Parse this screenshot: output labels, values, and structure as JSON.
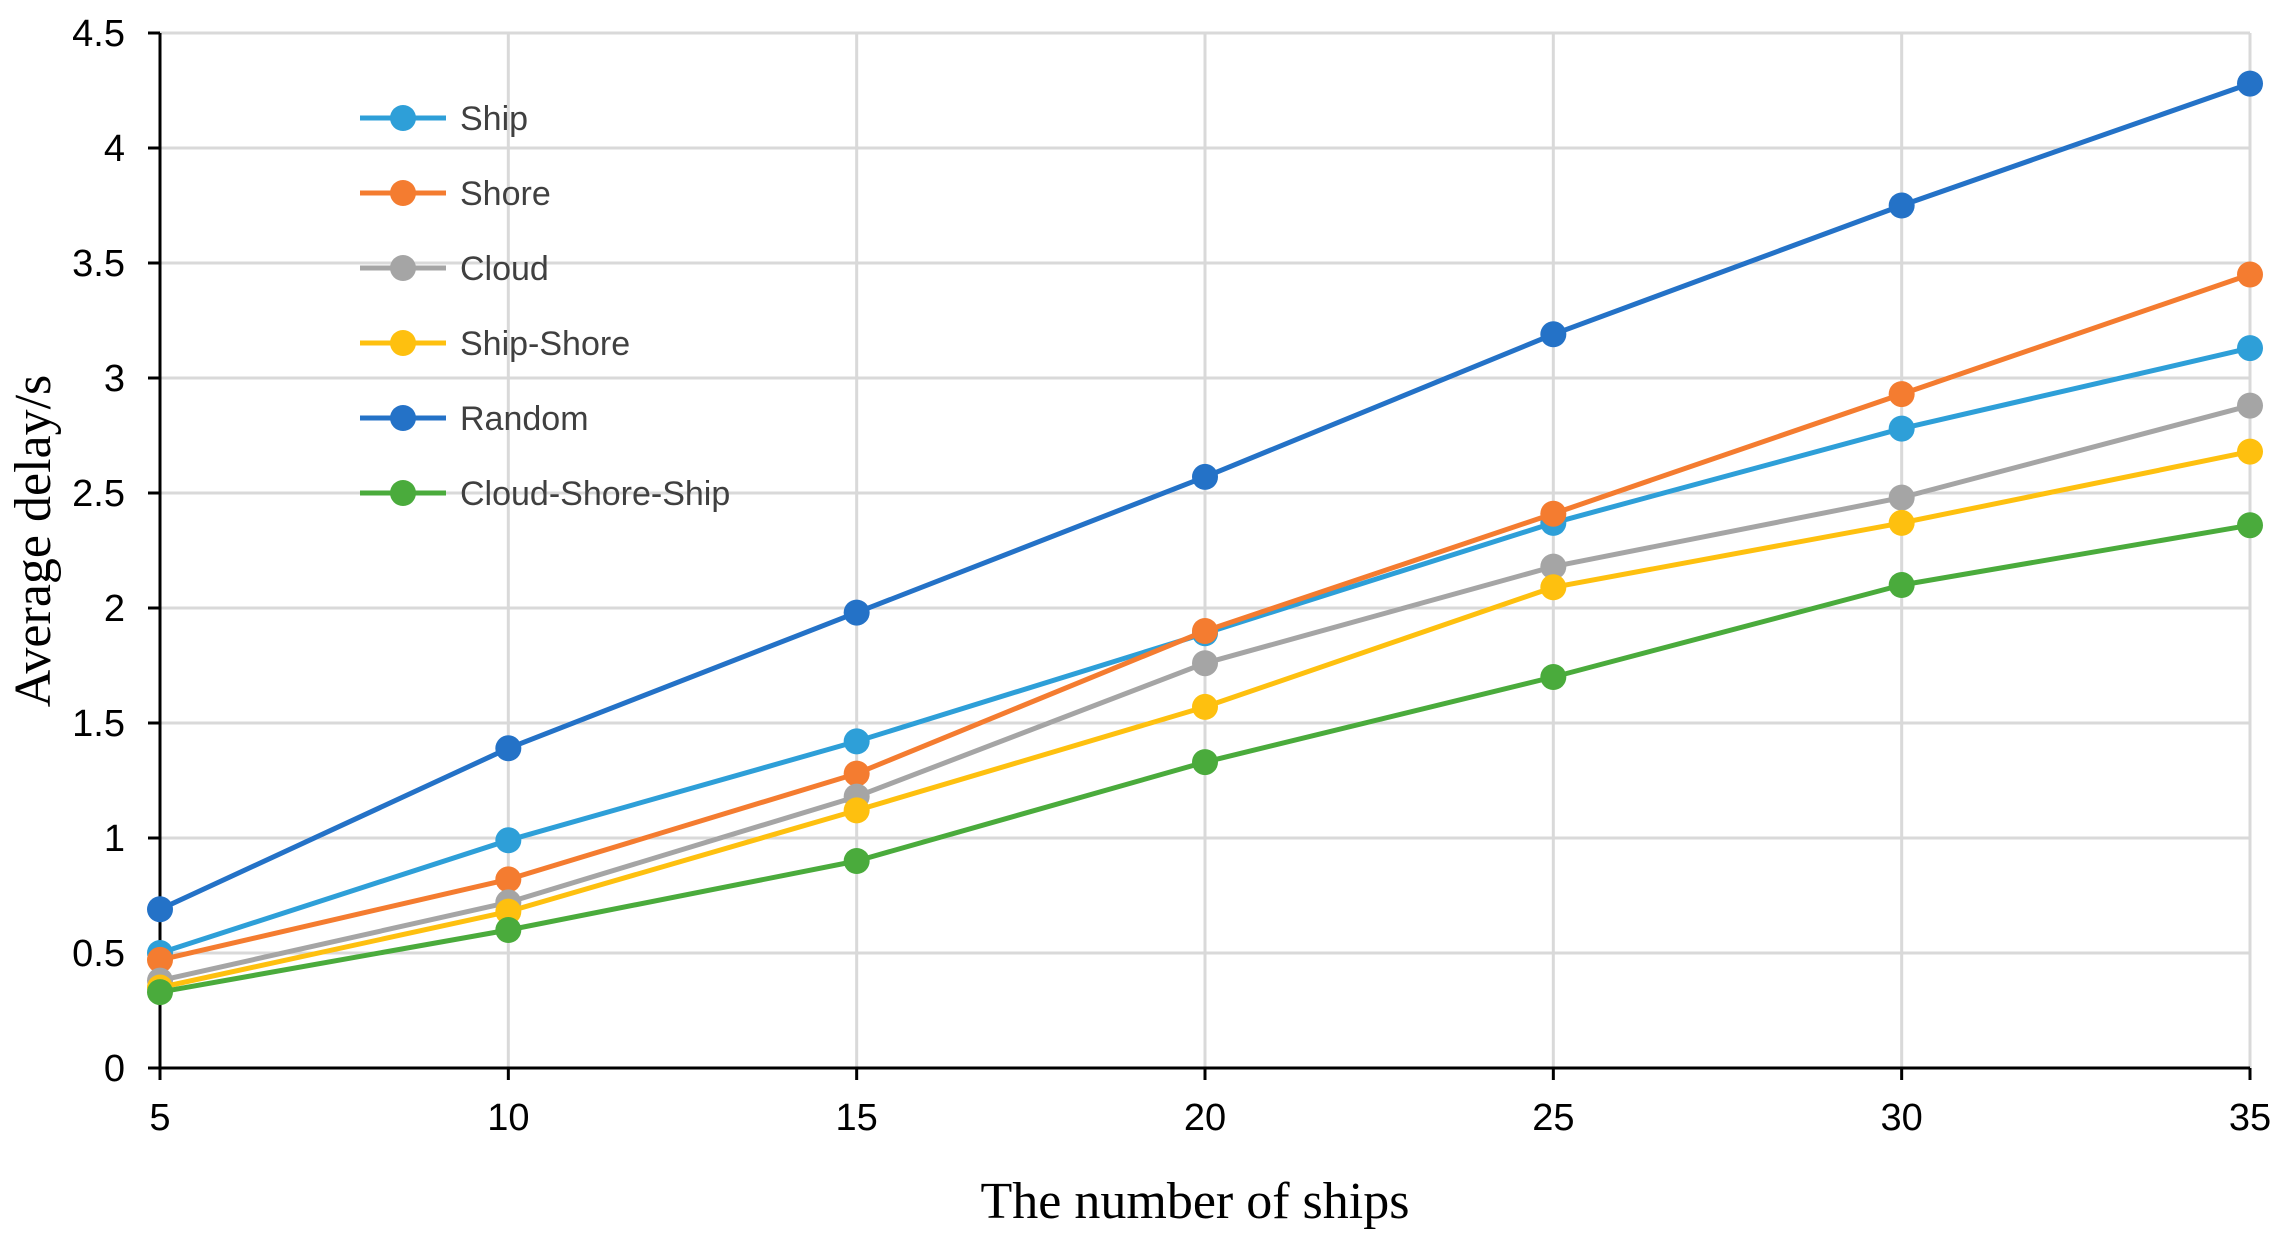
{
  "chart_data": {
    "type": "line",
    "title": "",
    "xlabel": "The number of ships",
    "ylabel": "Average delay/s",
    "x": [
      5,
      10,
      15,
      20,
      25,
      30,
      35
    ],
    "xlim": [
      5,
      35
    ],
    "ylim": [
      0,
      4.5
    ],
    "x_ticks": [
      "5",
      "10",
      "15",
      "20",
      "25",
      "30",
      "35"
    ],
    "y_ticks": [
      "0",
      "0.5",
      "1",
      "1.5",
      "2",
      "2.5",
      "3",
      "3.5",
      "4",
      "4.5"
    ],
    "grid": true,
    "legend_position": "top-left",
    "series": [
      {
        "name": "Ship",
        "color": "#2e9fd8",
        "values": [
          0.5,
          0.99,
          1.42,
          1.89,
          2.37,
          2.78,
          3.13
        ]
      },
      {
        "name": "Shore",
        "color": "#f47c30",
        "values": [
          0.47,
          0.82,
          1.28,
          1.9,
          2.41,
          2.93,
          3.45
        ]
      },
      {
        "name": "Cloud",
        "color": "#a5a5a5",
        "values": [
          0.38,
          0.72,
          1.18,
          1.76,
          2.18,
          2.48,
          2.88
        ]
      },
      {
        "name": "Ship-Shore",
        "color": "#fec00f",
        "values": [
          0.35,
          0.68,
          1.12,
          1.57,
          2.09,
          2.37,
          2.68
        ]
      },
      {
        "name": "Random",
        "color": "#2472c7",
        "values": [
          0.69,
          1.39,
          1.98,
          2.57,
          3.19,
          3.75,
          4.28
        ]
      },
      {
        "name": "Cloud-Shore-Ship",
        "color": "#4aab3c",
        "values": [
          0.33,
          0.6,
          0.9,
          1.33,
          1.7,
          2.1,
          2.36
        ]
      }
    ]
  }
}
